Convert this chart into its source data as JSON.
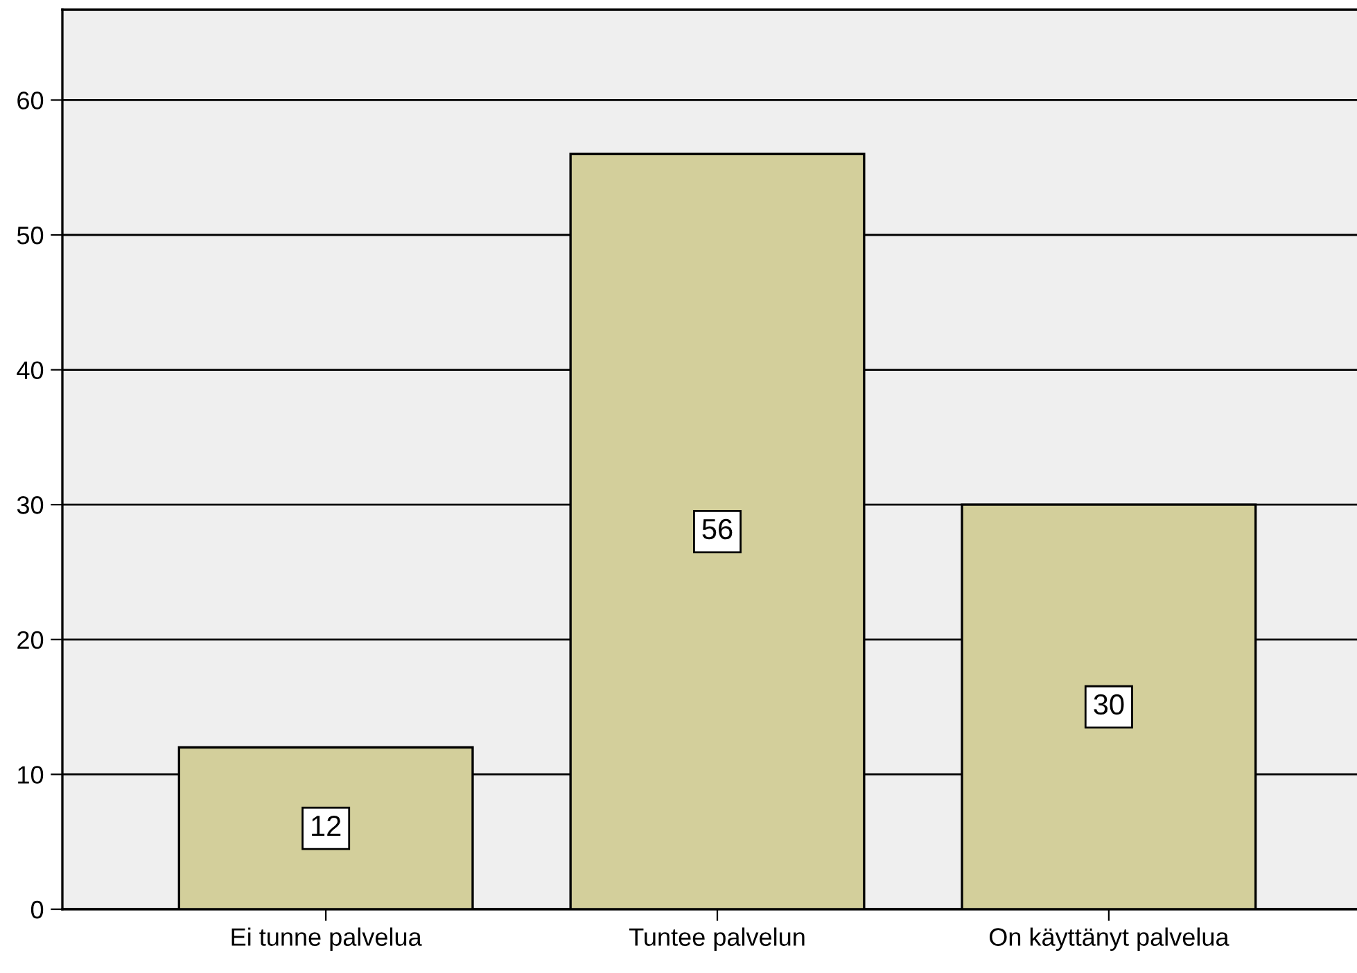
{
  "chart_data": {
    "type": "bar",
    "categories": [
      "Ei tunne palvelua",
      "Tuntee palvelun",
      "On käyttänyt palvelua"
    ],
    "values": [
      12,
      56,
      30
    ],
    "color": "#d3cf9b",
    "ylim": [
      0,
      66.7
    ],
    "yticks": [
      0,
      10,
      20,
      30,
      40,
      50,
      60
    ],
    "grid": "y",
    "data_labels": true
  }
}
